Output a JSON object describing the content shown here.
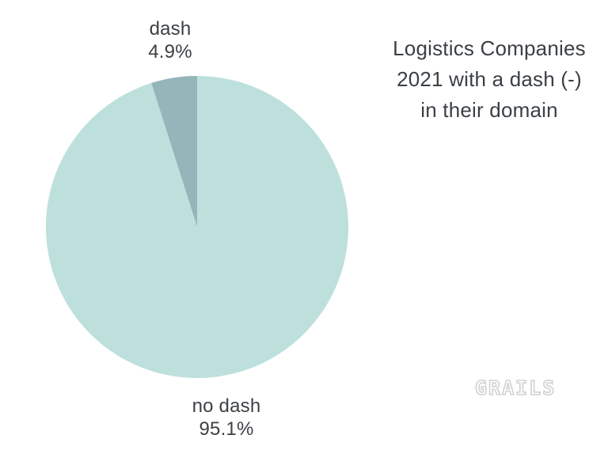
{
  "chart_data": {
    "type": "pie",
    "title": "Logistics Companies 2021 with a dash (-) in their domain",
    "labels": [
      "dash",
      "no dash"
    ],
    "values": [
      4.9,
      95.1
    ],
    "value_labels": [
      "4.9%",
      "95.1%"
    ],
    "colors": [
      "#94b5ba",
      "#bee0dd"
    ],
    "start_angle": "12-oclock",
    "direction": "counterclockwise",
    "legend": "none",
    "label_position": "outside",
    "background": "#ffffff",
    "label_text_color": "#3c4044"
  },
  "title": {
    "lines": [
      "Logistics Companies",
      "2021 with a dash (-)",
      "in their domain"
    ],
    "color": "#3b4045"
  },
  "watermark": {
    "text": "GRAILS",
    "color": "#d2d2d2"
  }
}
